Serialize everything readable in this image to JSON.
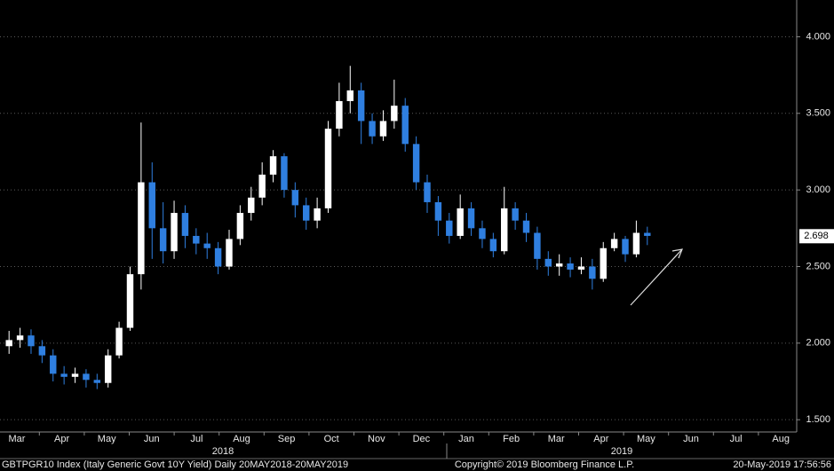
{
  "chart_data": {
    "type": "candlestick",
    "footer_left": "GBTPGR10 Index (Italy Generic Govt 10Y Yield)  Daily 20MAY2018-20MAY2019",
    "footer_center": "Copyright© 2019 Bloomberg Finance L.P.",
    "footer_right": "20-May-2019 17:56:56",
    "x_labels": [
      "Mar",
      "Apr",
      "May",
      "Jun",
      "Jul",
      "Aug",
      "Sep",
      "Oct",
      "Nov",
      "Dec",
      "Jan",
      "Feb",
      "Mar",
      "Apr",
      "May",
      "Jun",
      "Jul",
      "Aug"
    ],
    "year_labels": [
      "2018",
      "2019"
    ],
    "up_color": "#ffffff",
    "down_color": "#2f7fe0",
    "open": [
      1.98,
      2.02,
      2.05,
      1.98,
      1.92,
      1.8,
      1.78,
      1.8,
      1.76,
      1.74,
      1.92,
      2.1,
      2.45,
      3.05,
      2.75,
      2.6,
      2.85,
      2.7,
      2.65,
      2.62,
      2.5,
      2.68,
      2.85,
      2.95,
      3.1,
      3.22,
      3.0,
      2.9,
      2.8,
      2.88,
      3.4,
      3.58,
      3.65,
      3.45,
      3.35,
      3.45,
      3.55,
      3.3,
      3.05,
      2.92,
      2.8,
      2.7,
      2.88,
      2.75,
      2.68,
      2.6,
      2.88,
      2.8,
      2.72,
      2.55,
      2.5,
      2.52,
      2.48,
      2.5,
      2.42,
      2.62,
      2.68,
      2.58,
      2.72
    ],
    "high": [
      2.08,
      2.1,
      2.09,
      2.02,
      1.96,
      1.85,
      1.84,
      1.83,
      1.8,
      1.96,
      2.14,
      2.5,
      3.44,
      3.18,
      2.92,
      2.93,
      2.9,
      2.75,
      2.72,
      2.66,
      2.74,
      2.9,
      3.02,
      3.18,
      3.26,
      3.24,
      3.05,
      2.95,
      2.95,
      3.45,
      3.7,
      3.81,
      3.7,
      3.5,
      3.52,
      3.72,
      3.6,
      3.35,
      3.1,
      2.96,
      2.85,
      2.97,
      2.92,
      2.8,
      2.72,
      3.02,
      2.92,
      2.85,
      2.76,
      2.6,
      2.58,
      2.56,
      2.56,
      2.55,
      2.66,
      2.72,
      2.7,
      2.8,
      2.76
    ],
    "low": [
      1.93,
      1.97,
      1.93,
      1.87,
      1.75,
      1.73,
      1.74,
      1.71,
      1.7,
      1.71,
      1.9,
      2.08,
      2.35,
      2.55,
      2.52,
      2.55,
      2.62,
      2.58,
      2.55,
      2.45,
      2.48,
      2.64,
      2.8,
      2.9,
      3.05,
      2.95,
      2.82,
      2.74,
      2.75,
      2.85,
      3.35,
      3.5,
      3.3,
      3.3,
      3.32,
      3.4,
      3.25,
      3.0,
      2.85,
      2.7,
      2.65,
      2.68,
      2.7,
      2.62,
      2.56,
      2.58,
      2.74,
      2.66,
      2.48,
      2.44,
      2.44,
      2.43,
      2.45,
      2.35,
      2.4,
      2.6,
      2.53,
      2.56,
      2.64
    ],
    "close": [
      2.02,
      2.05,
      1.98,
      1.92,
      1.8,
      1.78,
      1.8,
      1.76,
      1.74,
      1.92,
      2.1,
      2.45,
      3.05,
      2.75,
      2.6,
      2.85,
      2.7,
      2.65,
      2.62,
      2.5,
      2.68,
      2.85,
      2.95,
      3.1,
      3.22,
      3.0,
      2.9,
      2.8,
      2.88,
      3.4,
      3.58,
      3.65,
      3.45,
      3.35,
      3.45,
      3.55,
      3.3,
      3.05,
      2.92,
      2.8,
      2.7,
      2.88,
      2.75,
      2.68,
      2.6,
      2.88,
      2.8,
      2.72,
      2.55,
      2.5,
      2.52,
      2.48,
      2.5,
      2.42,
      2.62,
      2.68,
      2.58,
      2.72,
      2.7
    ],
    "last_value": 2.698,
    "ylim": [
      1.42,
      4.24
    ],
    "yticks": [
      {
        "value": 1.5,
        "label": "1.500"
      },
      {
        "value": 2,
        "label": "2.000"
      },
      {
        "value": 2.5,
        "label": "2.500"
      },
      {
        "value": 3,
        "label": "3.000"
      },
      {
        "value": 3.5,
        "label": "3.500"
      },
      {
        "value": 4,
        "label": "4.000"
      }
    ],
    "grid": true
  }
}
